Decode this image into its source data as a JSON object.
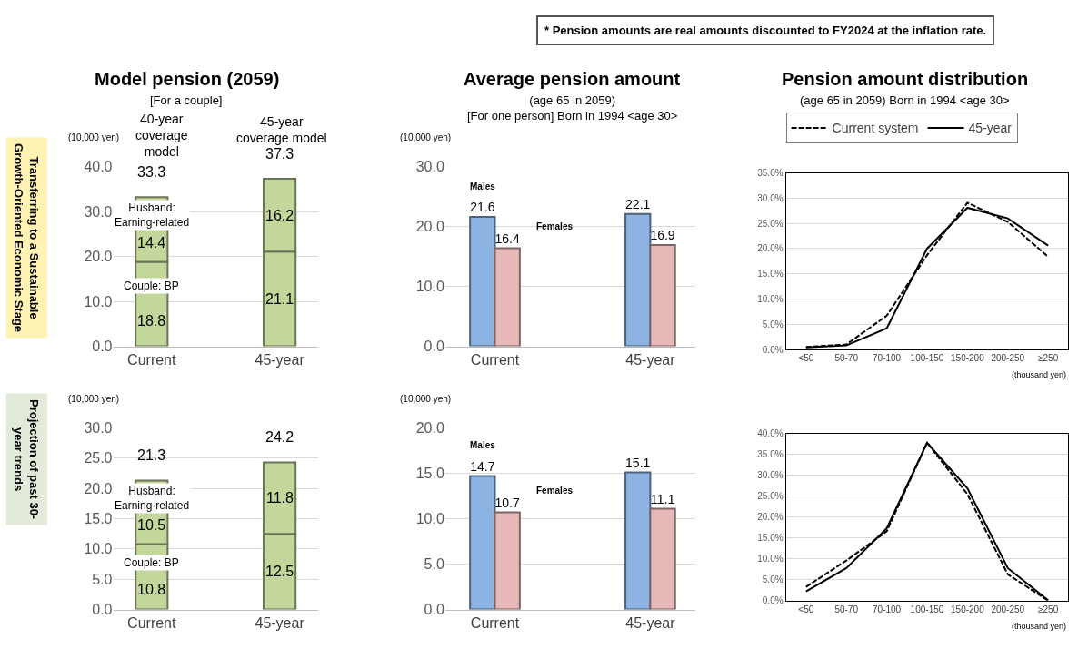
{
  "chart_data": [
    {
      "type": "bar",
      "stacked": true,
      "title": "Model pension (2059)",
      "subtitle": "[For a couple]",
      "ylabel": "(10,000 yen)",
      "categories": [
        "Current",
        "45-year"
      ],
      "series": [
        {
          "name": "Couple: BP",
          "color": "#c3d69b",
          "values": [
            18.8,
            21.1
          ]
        },
        {
          "name": "Husband:\nEarning-related",
          "color": "#c3d69b",
          "values": [
            14.4,
            16.2
          ]
        }
      ],
      "totals": [
        "33.3",
        "37.3"
      ],
      "data_labels": true,
      "ylim": [
        0,
        40
      ],
      "yticks": [
        {
          "value": 0,
          "label": "0.0"
        },
        {
          "value": 10,
          "label": "10.0"
        },
        {
          "value": 20,
          "label": "20.0"
        },
        {
          "value": 30,
          "label": "30.0"
        },
        {
          "value": 40,
          "label": "40.0"
        }
      ],
      "grid": "y",
      "annotations": [
        "* Pension amounts are real amounts discounted to FY2024 at the inflation rate.",
        "Transferring to a Sustainable\nGrowth-Oriented Economic Stage",
        "40-year\ncoverage\nmodel",
        "45-year\ncoverage model"
      ]
    },
    {
      "type": "bar",
      "title": "Average pension amount",
      "subtitle": "(age 65 in 2059)\n[For one person] Born in 1994 <age 30>",
      "ylabel": "(10,000 yen)",
      "categories": [
        "Current",
        "45-year"
      ],
      "series": [
        {
          "name": "Males",
          "color": "#8db3e2",
          "values": [
            21.6,
            22.1
          ]
        },
        {
          "name": "Females",
          "color": "#e6b9b8",
          "values": [
            16.4,
            16.9
          ]
        }
      ],
      "data_labels": true,
      "ylim": [
        0,
        30
      ],
      "yticks": [
        {
          "value": 0,
          "label": "0.0"
        },
        {
          "value": 10,
          "label": "10.0"
        },
        {
          "value": 20,
          "label": "20.0"
        },
        {
          "value": 30,
          "label": "30.0"
        }
      ],
      "grid": "y"
    },
    {
      "type": "line",
      "title": "Pension amount distribution",
      "subtitle": "(age 65 in 2059) Born in 1994 <age 30>",
      "xlabel": "(thousand yen)",
      "categories": [
        "<50",
        "50-70",
        "70-100",
        "100-150",
        "150-200",
        "200-250",
        "≥250"
      ],
      "series": [
        {
          "name": "Current system",
          "color": "#000000",
          "line_style": "dashed",
          "values": [
            0.5,
            1.0,
            6.7,
            18.7,
            29.1,
            25.3,
            18.4
          ]
        },
        {
          "name": "45-year",
          "color": "#000000",
          "line_style": "solid",
          "values": [
            0.4,
            0.8,
            4.2,
            20.0,
            28.1,
            26.0,
            20.6
          ]
        }
      ],
      "legend": "top",
      "ylim": [
        0,
        35
      ],
      "yticks": [
        {
          "value": 0,
          "label": "0.0%"
        },
        {
          "value": 5,
          "label": "5.0%"
        },
        {
          "value": 10,
          "label": "10.0%"
        },
        {
          "value": 15,
          "label": "15.0%"
        },
        {
          "value": 20,
          "label": "20.0%"
        },
        {
          "value": 25,
          "label": "25.0%"
        },
        {
          "value": 30,
          "label": "30.0%"
        },
        {
          "value": 35,
          "label": "35.0%"
        }
      ],
      "grid": "y"
    },
    {
      "type": "bar",
      "stacked": true,
      "ylabel": "(10,000 yen)",
      "categories": [
        "Current",
        "45-year"
      ],
      "series": [
        {
          "name": "Couple: BP",
          "color": "#c3d69b",
          "values": [
            10.8,
            12.5
          ]
        },
        {
          "name": "Husband:\nEarning-related",
          "color": "#c3d69b",
          "values": [
            10.5,
            11.8
          ]
        }
      ],
      "totals": [
        "21.3",
        "24.2"
      ],
      "data_labels": true,
      "ylim": [
        0,
        30
      ],
      "yticks": [
        {
          "value": 0,
          "label": "0.0"
        },
        {
          "value": 5,
          "label": "5.0"
        },
        {
          "value": 10,
          "label": "10.0"
        },
        {
          "value": 15,
          "label": "15.0"
        },
        {
          "value": 20,
          "label": "20.0"
        },
        {
          "value": 25,
          "label": "25.0"
        },
        {
          "value": 30,
          "label": "30.0"
        }
      ],
      "grid": "y",
      "annotations": [
        "Projection of past 30-\nyear trends"
      ]
    },
    {
      "type": "bar",
      "ylabel": "(10,000 yen)",
      "categories": [
        "Current",
        "45-year"
      ],
      "series": [
        {
          "name": "Males",
          "color": "#8db3e2",
          "values": [
            14.7,
            15.1
          ]
        },
        {
          "name": "Females",
          "color": "#e6b9b8",
          "values": [
            10.7,
            11.1
          ]
        }
      ],
      "data_labels": true,
      "ylim": [
        0,
        20
      ],
      "yticks": [
        {
          "value": 0,
          "label": "0.0"
        },
        {
          "value": 5,
          "label": "5.0"
        },
        {
          "value": 10,
          "label": "10.0"
        },
        {
          "value": 15,
          "label": "15.0"
        },
        {
          "value": 20,
          "label": "20.0"
        }
      ],
      "grid": "y"
    },
    {
      "type": "line",
      "xlabel": "(thousand yen)",
      "categories": [
        "<50",
        "50-70",
        "70-100",
        "100-150",
        "150-200",
        "200-250",
        "≥250"
      ],
      "series": [
        {
          "color": "#000000",
          "line_style": "dashed",
          "values": [
            3.3,
            9.6,
            16.6,
            37.8,
            25.5,
            6.3,
            0.0
          ]
        },
        {
          "color": "#000000",
          "line_style": "solid",
          "values": [
            2.2,
            7.8,
            17.3,
            37.8,
            26.9,
            7.8,
            0.1
          ]
        }
      ],
      "ylim": [
        0,
        40
      ],
      "yticks": [
        {
          "value": 0,
          "label": "0.0%"
        },
        {
          "value": 5,
          "label": "5.0%"
        },
        {
          "value": 10,
          "label": "10.0%"
        },
        {
          "value": 15,
          "label": "15.0%"
        },
        {
          "value": 20,
          "label": "20.0%"
        },
        {
          "value": 25,
          "label": "25.0%"
        },
        {
          "value": 30,
          "label": "30.0%"
        },
        {
          "value": 35,
          "label": "35.0%"
        },
        {
          "value": 40,
          "label": "40.0%"
        }
      ],
      "grid": "y"
    }
  ]
}
